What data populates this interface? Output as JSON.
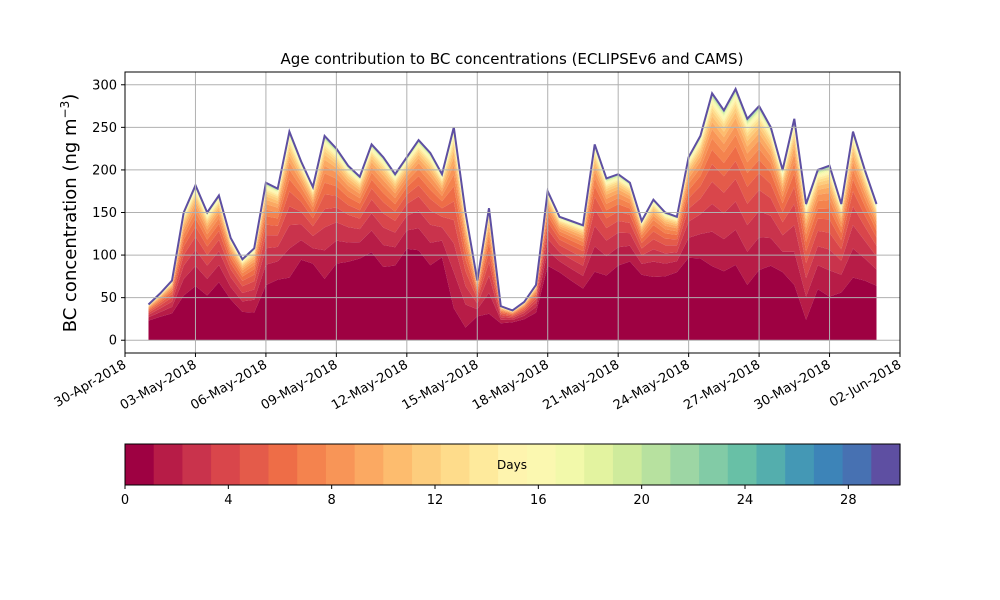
{
  "chart_data": {
    "type": "area",
    "title": "Age contribution to BC concentrations (ECLIPSEv6 and CAMS)",
    "ylabel": "BC concentration (ng m",
    "ylabel_sup": "−3",
    "ylabel_close": ")",
    "xlabel": "",
    "ylim": [
      -15,
      315
    ],
    "xlim": [
      "2018-04-30",
      "2018-06-02"
    ],
    "grid": true,
    "y_ticks": [
      0,
      50,
      100,
      150,
      200,
      250,
      300
    ],
    "x_ticks": [
      "30-Apr-2018",
      "03-May-2018",
      "06-May-2018",
      "09-May-2018",
      "12-May-2018",
      "15-May-2018",
      "18-May-2018",
      "21-May-2018",
      "24-May-2018",
      "27-May-2018",
      "30-May-2018",
      "02-Jun-2018"
    ],
    "series_note": "stacked contributions by age in days, 0 to 30, colored from dark red (0 days) to dark blue (30 days)",
    "x": [
      "2018-05-01",
      "2018-05-01T12",
      "2018-05-02",
      "2018-05-02T12",
      "2018-05-03",
      "2018-05-03T12",
      "2018-05-04",
      "2018-05-04T12",
      "2018-05-05",
      "2018-05-05T12",
      "2018-05-06",
      "2018-05-06T12",
      "2018-05-07",
      "2018-05-07T12",
      "2018-05-08",
      "2018-05-08T12",
      "2018-05-09",
      "2018-05-09T12",
      "2018-05-10",
      "2018-05-10T12",
      "2018-05-11",
      "2018-05-11T12",
      "2018-05-12",
      "2018-05-12T12",
      "2018-05-13",
      "2018-05-13T12",
      "2018-05-14",
      "2018-05-14T12",
      "2018-05-15",
      "2018-05-15T12",
      "2018-05-16",
      "2018-05-16T12",
      "2018-05-17",
      "2018-05-17T12",
      "2018-05-18",
      "2018-05-18T12",
      "2018-05-19",
      "2018-05-19T12",
      "2018-05-20",
      "2018-05-20T12",
      "2018-05-21",
      "2018-05-21T12",
      "2018-05-22",
      "2018-05-22T12",
      "2018-05-23",
      "2018-05-23T12",
      "2018-05-24",
      "2018-05-24T12",
      "2018-05-25",
      "2018-05-25T12",
      "2018-05-26",
      "2018-05-26T12",
      "2018-05-27",
      "2018-05-27T12",
      "2018-05-28",
      "2018-05-28T12",
      "2018-05-29",
      "2018-05-29T12",
      "2018-05-30",
      "2018-05-30T12",
      "2018-05-31",
      "2018-05-31T12",
      "2018-06-01"
    ],
    "total": [
      42,
      55,
      70,
      150,
      182,
      150,
      170,
      120,
      95,
      108,
      185,
      178,
      245,
      210,
      180,
      240,
      225,
      205,
      192,
      230,
      215,
      195,
      215,
      235,
      220,
      195,
      250,
      150,
      70,
      155,
      40,
      35,
      45,
      65,
      175,
      145,
      140,
      135,
      230,
      190,
      195,
      185,
      140,
      165,
      150,
      145,
      215,
      240,
      290,
      270,
      295,
      260,
      275,
      250,
      200,
      260,
      160,
      200,
      205,
      160,
      245,
      200,
      160
    ],
    "young_fraction": [
      0.55,
      0.5,
      0.45,
      0.35,
      0.35,
      0.35,
      0.4,
      0.4,
      0.35,
      0.3,
      0.35,
      0.4,
      0.3,
      0.45,
      0.5,
      0.3,
      0.4,
      0.45,
      0.5,
      0.45,
      0.4,
      0.45,
      0.5,
      0.45,
      0.4,
      0.5,
      0.15,
      0.1,
      0.4,
      0.2,
      0.5,
      0.6,
      0.55,
      0.5,
      0.5,
      0.55,
      0.5,
      0.45,
      0.35,
      0.4,
      0.45,
      0.5,
      0.55,
      0.45,
      0.5,
      0.55,
      0.45,
      0.4,
      0.3,
      0.3,
      0.3,
      0.25,
      0.3,
      0.35,
      0.4,
      0.25,
      0.15,
      0.3,
      0.25,
      0.35,
      0.3,
      0.35,
      0.4
    ],
    "colorbar": {
      "label": "Days",
      "ticks": [
        0,
        4,
        8,
        12,
        16,
        20,
        24,
        28
      ],
      "range": [
        0,
        30
      ],
      "colors": [
        "#9e0142",
        "#b71c47",
        "#c9334c",
        "#d9464b",
        "#e45b4a",
        "#ee6d47",
        "#f4834e",
        "#f89557",
        "#fba962",
        "#fdbc6e",
        "#fdcd7d",
        "#fedc8b",
        "#feea9c",
        "#fef4ae",
        "#fbf8b0",
        "#f2f9aa",
        "#e3f3a0",
        "#cfeb9c",
        "#b7e19f",
        "#9dd6a4",
        "#82cba6",
        "#68c0a6",
        "#54aead",
        "#4498b5",
        "#3d84b8",
        "#4771b2",
        "#5e4fa2"
      ]
    }
  }
}
